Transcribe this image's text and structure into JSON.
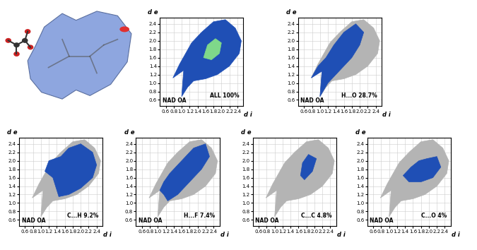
{
  "chart_data": [
    {
      "type": "fingerprint",
      "label": "ALL 100%",
      "corner_text": "NAD OA",
      "xlabel": "d i",
      "ylabel": "d e",
      "xlim": [
        0.45,
        2.55
      ],
      "ylim": [
        0.45,
        2.55
      ],
      "xticks": [
        0.6,
        0.8,
        1.0,
        1.2,
        1.4,
        1.6,
        1.8,
        2.0,
        2.2,
        2.4
      ],
      "yticks": [
        0.6,
        0.8,
        1.0,
        1.2,
        1.4,
        1.6,
        1.8,
        2.0,
        2.2,
        2.4
      ],
      "grid": true,
      "regions": [
        [
          [
            0.78,
            1.12
          ],
          [
            1.05,
            1.3
          ],
          [
            1.0,
            0.68
          ],
          [
            1.15,
            0.9
          ],
          [
            1.3,
            1.05
          ],
          [
            1.6,
            1.1
          ],
          [
            1.9,
            1.2
          ],
          [
            2.2,
            1.4
          ],
          [
            2.45,
            1.7
          ],
          [
            2.5,
            2.0
          ],
          [
            2.35,
            2.3
          ],
          [
            2.1,
            2.5
          ],
          [
            1.8,
            2.45
          ],
          [
            1.5,
            2.2
          ],
          [
            1.25,
            1.95
          ],
          [
            1.1,
            1.7
          ],
          [
            0.95,
            1.45
          ]
        ],
        [
          [
            1.55,
            1.6
          ],
          [
            1.75,
            1.55
          ],
          [
            1.95,
            1.7
          ],
          [
            2.0,
            1.95
          ],
          [
            1.85,
            2.05
          ],
          [
            1.65,
            1.9
          ]
        ]
      ],
      "colors": [
        "#1f4fb5",
        "#7fd88a"
      ]
    },
    {
      "type": "fingerprint",
      "label": "H...O 28.7%",
      "corner_text": "NAD OA",
      "xlabel": "d i",
      "ylabel": "d e",
      "xlim": [
        0.45,
        2.55
      ],
      "ylim": [
        0.45,
        2.55
      ],
      "xticks": [
        0.6,
        0.8,
        1.0,
        1.2,
        1.4,
        1.6,
        1.8,
        2.0,
        2.2,
        2.4
      ],
      "yticks": [
        0.6,
        0.8,
        1.0,
        1.2,
        1.4,
        1.6,
        1.8,
        2.0,
        2.2,
        2.4
      ],
      "grid": true,
      "regions": [
        [
          [
            0.78,
            1.12
          ],
          [
            1.05,
            1.3
          ],
          [
            1.0,
            0.68
          ],
          [
            1.15,
            0.9
          ],
          [
            1.3,
            1.05
          ],
          [
            1.6,
            1.1
          ],
          [
            1.9,
            1.2
          ],
          [
            2.2,
            1.4
          ],
          [
            2.45,
            1.7
          ],
          [
            2.5,
            2.0
          ],
          [
            2.35,
            2.3
          ],
          [
            2.1,
            2.5
          ],
          [
            1.8,
            2.45
          ],
          [
            1.5,
            2.2
          ],
          [
            1.25,
            1.95
          ],
          [
            1.1,
            1.7
          ],
          [
            0.95,
            1.45
          ]
        ],
        [
          [
            0.78,
            1.12
          ],
          [
            1.05,
            1.28
          ],
          [
            1.0,
            0.68
          ],
          [
            1.2,
            1.0
          ],
          [
            1.5,
            1.3
          ],
          [
            1.8,
            1.6
          ],
          [
            2.0,
            1.9
          ],
          [
            2.1,
            2.2
          ],
          [
            1.9,
            2.4
          ],
          [
            1.6,
            2.2
          ],
          [
            1.35,
            1.9
          ],
          [
            1.15,
            1.6
          ],
          [
            0.95,
            1.4
          ]
        ]
      ],
      "colors": [
        "#b4b4b4",
        "#1f4fb5"
      ]
    },
    {
      "type": "fingerprint",
      "label": "C...H 9.2%",
      "corner_text": "NAD OA",
      "xlabel": "d i",
      "ylabel": "d e",
      "xlim": [
        0.45,
        2.55
      ],
      "ylim": [
        0.45,
        2.55
      ],
      "xticks": [
        0.6,
        0.8,
        1.0,
        1.2,
        1.4,
        1.6,
        1.8,
        2.0,
        2.2,
        2.4
      ],
      "yticks": [
        0.6,
        0.8,
        1.0,
        1.2,
        1.4,
        1.6,
        1.8,
        2.0,
        2.2,
        2.4
      ],
      "grid": true,
      "regions": [
        [
          [
            0.78,
            1.12
          ],
          [
            1.05,
            1.3
          ],
          [
            1.0,
            0.68
          ],
          [
            1.15,
            0.9
          ],
          [
            1.3,
            1.05
          ],
          [
            1.6,
            1.1
          ],
          [
            1.9,
            1.2
          ],
          [
            2.2,
            1.4
          ],
          [
            2.45,
            1.7
          ],
          [
            2.5,
            2.0
          ],
          [
            2.35,
            2.3
          ],
          [
            2.1,
            2.5
          ],
          [
            1.8,
            2.45
          ],
          [
            1.5,
            2.2
          ],
          [
            1.25,
            1.95
          ],
          [
            1.1,
            1.7
          ],
          [
            0.95,
            1.45
          ]
        ],
        [
          [
            1.1,
            1.75
          ],
          [
            1.3,
            1.6
          ],
          [
            1.45,
            1.15
          ],
          [
            1.7,
            1.2
          ],
          [
            2.0,
            1.35
          ],
          [
            2.3,
            1.6
          ],
          [
            2.4,
            1.9
          ],
          [
            2.3,
            2.2
          ],
          [
            2.0,
            2.4
          ],
          [
            1.7,
            2.3
          ],
          [
            1.5,
            2.1
          ],
          [
            1.2,
            2.0
          ]
        ]
      ],
      "colors": [
        "#b4b4b4",
        "#1f4fb5"
      ]
    },
    {
      "type": "fingerprint",
      "label": "H...F 7.4%",
      "corner_text": "NAD OA",
      "xlabel": "d i",
      "ylabel": "d e",
      "xlim": [
        0.45,
        2.55
      ],
      "ylim": [
        0.45,
        2.55
      ],
      "xticks": [
        0.6,
        0.8,
        1.0,
        1.2,
        1.4,
        1.6,
        1.8,
        2.0,
        2.2,
        2.4
      ],
      "yticks": [
        0.6,
        0.8,
        1.0,
        1.2,
        1.4,
        1.6,
        1.8,
        2.0,
        2.2,
        2.4
      ],
      "grid": true,
      "regions": [
        [
          [
            0.78,
            1.12
          ],
          [
            1.05,
            1.3
          ],
          [
            1.0,
            0.68
          ],
          [
            1.15,
            0.9
          ],
          [
            1.3,
            1.05
          ],
          [
            1.6,
            1.1
          ],
          [
            1.9,
            1.2
          ],
          [
            2.2,
            1.4
          ],
          [
            2.45,
            1.7
          ],
          [
            2.5,
            2.0
          ],
          [
            2.35,
            2.3
          ],
          [
            2.1,
            2.5
          ],
          [
            1.8,
            2.45
          ],
          [
            1.5,
            2.2
          ],
          [
            1.25,
            1.95
          ],
          [
            1.1,
            1.7
          ],
          [
            0.95,
            1.45
          ]
        ],
        [
          [
            1.05,
            1.3
          ],
          [
            1.15,
            1.2
          ],
          [
            1.25,
            1.05
          ],
          [
            1.5,
            1.2
          ],
          [
            1.8,
            1.5
          ],
          [
            2.1,
            1.8
          ],
          [
            2.3,
            2.1
          ],
          [
            2.2,
            2.4
          ],
          [
            1.9,
            2.3
          ],
          [
            1.6,
            2.0
          ],
          [
            1.3,
            1.7
          ],
          [
            1.15,
            1.5
          ]
        ]
      ],
      "colors": [
        "#b4b4b4",
        "#1f4fb5"
      ]
    },
    {
      "type": "fingerprint",
      "label": "C...C 4.8%",
      "corner_text": "NAD OA",
      "xlabel": "d i",
      "ylabel": "d e",
      "xlim": [
        0.45,
        2.55
      ],
      "ylim": [
        0.45,
        2.55
      ],
      "xticks": [
        0.6,
        0.8,
        1.0,
        1.2,
        1.4,
        1.6,
        1.8,
        2.0,
        2.2,
        2.4
      ],
      "yticks": [
        0.6,
        0.8,
        1.0,
        1.2,
        1.4,
        1.6,
        1.8,
        2.0,
        2.2,
        2.4
      ],
      "grid": true,
      "regions": [
        [
          [
            0.78,
            1.12
          ],
          [
            1.05,
            1.3
          ],
          [
            1.0,
            0.68
          ],
          [
            1.15,
            0.9
          ],
          [
            1.3,
            1.05
          ],
          [
            1.6,
            1.1
          ],
          [
            1.9,
            1.2
          ],
          [
            2.2,
            1.4
          ],
          [
            2.45,
            1.7
          ],
          [
            2.5,
            2.0
          ],
          [
            2.35,
            2.3
          ],
          [
            2.1,
            2.5
          ],
          [
            1.8,
            2.45
          ],
          [
            1.5,
            2.2
          ],
          [
            1.25,
            1.95
          ],
          [
            1.1,
            1.7
          ],
          [
            0.95,
            1.45
          ]
        ],
        [
          [
            1.65,
            1.65
          ],
          [
            1.75,
            1.55
          ],
          [
            1.95,
            1.75
          ],
          [
            2.05,
            2.05
          ],
          [
            1.85,
            2.15
          ],
          [
            1.7,
            1.95
          ]
        ]
      ],
      "colors": [
        "#b4b4b4",
        "#1f4fb5"
      ]
    },
    {
      "type": "fingerprint",
      "label": "C...O 4%",
      "corner_text": "NAD OA",
      "xlabel": "d i",
      "ylabel": "d e",
      "xlim": [
        0.45,
        2.55
      ],
      "ylim": [
        0.45,
        2.55
      ],
      "xticks": [
        0.6,
        0.8,
        1.0,
        1.2,
        1.4,
        1.6,
        1.8,
        2.0,
        2.2,
        2.4
      ],
      "yticks": [
        0.6,
        0.8,
        1.0,
        1.2,
        1.4,
        1.6,
        1.8,
        2.0,
        2.2,
        2.4
      ],
      "grid": true,
      "regions": [
        [
          [
            0.78,
            1.12
          ],
          [
            1.05,
            1.3
          ],
          [
            1.0,
            0.68
          ],
          [
            1.15,
            0.9
          ],
          [
            1.3,
            1.05
          ],
          [
            1.6,
            1.1
          ],
          [
            1.9,
            1.2
          ],
          [
            2.2,
            1.4
          ],
          [
            2.45,
            1.7
          ],
          [
            2.5,
            2.0
          ],
          [
            2.35,
            2.3
          ],
          [
            2.1,
            2.5
          ],
          [
            1.8,
            2.45
          ],
          [
            1.5,
            2.2
          ],
          [
            1.25,
            1.95
          ],
          [
            1.1,
            1.7
          ],
          [
            0.95,
            1.45
          ]
        ],
        [
          [
            1.35,
            1.65
          ],
          [
            1.5,
            1.5
          ],
          [
            1.8,
            1.5
          ],
          [
            2.1,
            1.6
          ],
          [
            2.3,
            1.85
          ],
          [
            2.2,
            2.1
          ],
          [
            1.95,
            2.05
          ],
          [
            1.75,
            2.0
          ],
          [
            1.55,
            1.85
          ]
        ]
      ],
      "colors": [
        "#b4b4b4",
        "#1f4fb5"
      ]
    }
  ]
}
